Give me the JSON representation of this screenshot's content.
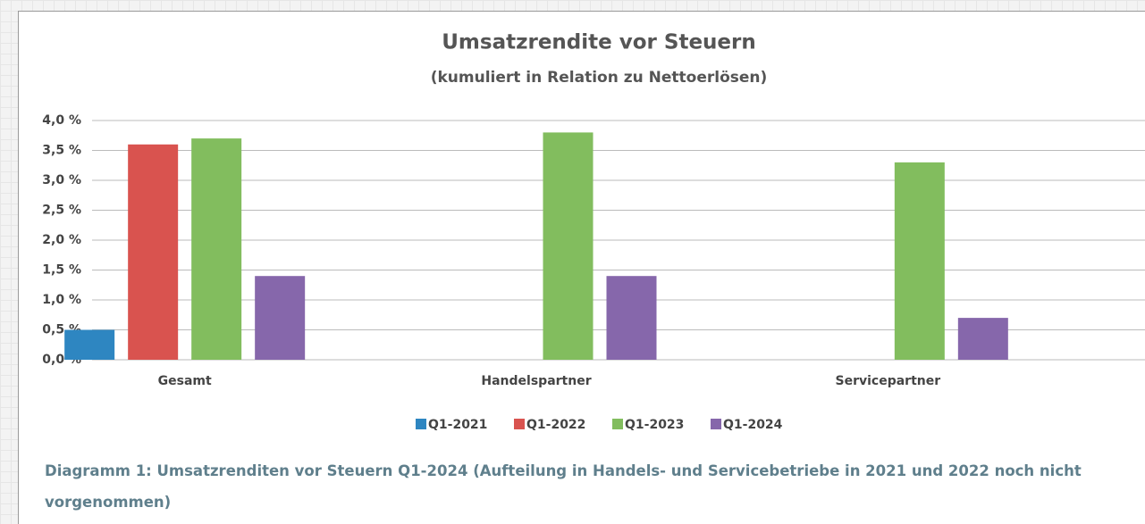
{
  "chart_data": {
    "type": "bar",
    "title": "Umsatzrendite vor Steuern",
    "subtitle": "(kumuliert in Relation zu Nettoerlösen)",
    "categories": [
      "Gesamt",
      "Handelspartner",
      "Servicepartner"
    ],
    "series": [
      {
        "name": "Q1-2021",
        "color": "#2e86c1",
        "values": [
          0.5,
          null,
          null
        ]
      },
      {
        "name": "Q1-2022",
        "color": "#d9534f",
        "values": [
          3.6,
          null,
          null
        ]
      },
      {
        "name": "Q1-2023",
        "color": "#82bd5e",
        "values": [
          3.7,
          3.8,
          3.3
        ]
      },
      {
        "name": "Q1-2024",
        "color": "#8667ab",
        "values": [
          1.4,
          1.4,
          0.7
        ]
      }
    ],
    "ylim": [
      0,
      4
    ],
    "yticks": [
      {
        "value": 0,
        "label": "0,0 %"
      },
      {
        "value": 0.5,
        "label": "0,5 %"
      },
      {
        "value": 1,
        "label": "1,0 %"
      },
      {
        "value": 1.5,
        "label": "1,5 %"
      },
      {
        "value": 2,
        "label": "2,0 %"
      },
      {
        "value": 2.5,
        "label": "2,5 %"
      },
      {
        "value": 3,
        "label": "3,0 %"
      },
      {
        "value": 3.5,
        "label": "3,5 %"
      },
      {
        "value": 4,
        "label": "4,0 %"
      }
    ],
    "grid": true,
    "legend": "bottom"
  },
  "caption": "Diagramm 1: Umsatzrenditen vor Steuern Q1-2024 (Aufteilung in Handels- und Servicebetriebe in 2021 und 2022 noch nicht vorgenommen)"
}
